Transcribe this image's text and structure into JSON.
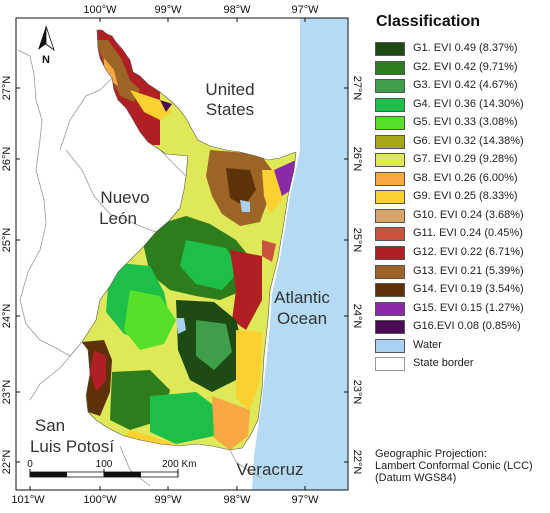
{
  "map": {
    "longitude_labels": [
      "100°W",
      "99°W",
      "98°W",
      "97°W"
    ],
    "bottom_longitude_labels": [
      "101°W",
      "100°W",
      "99°W",
      "98°W",
      "97°W"
    ],
    "latitude_labels": [
      "27°N",
      "26°N",
      "25°N",
      "24°N",
      "23°N",
      "22°N"
    ],
    "region_labels": {
      "united_states_line1": "United",
      "united_states_line2": "States",
      "nuevo_leon_line1": "Nuevo",
      "nuevo_leon_line2": "León",
      "atlantic_line1": "Atlantic",
      "atlantic_line2": "Ocean",
      "san_luis_line1": "San",
      "san_luis_line2": "Luis Potosí",
      "veracruz": "Veracruz"
    },
    "north_arrow_label": "N",
    "scale_bar": {
      "labels": [
        "0",
        "100",
        "200 Km"
      ]
    },
    "colors": {
      "ocean": "#b5dbf4",
      "land_background": "#ffffff",
      "border": "#9a9a9a"
    }
  },
  "legend": {
    "title": "Classification",
    "items": [
      {
        "label": "G1. EVI 0.49 (8.37%)",
        "color": "#1e4a14"
      },
      {
        "label": "G2. EVI 0.42 (9.71%)",
        "color": "#2d7d1d"
      },
      {
        "label": "G3. EVI 0.42 (4.67%)",
        "color": "#3f9e4a"
      },
      {
        "label": "G4. EVI 0.36 (14.30%)",
        "color": "#1dbf48"
      },
      {
        "label": "G5. EVI 0.33 (3.08%)",
        "color": "#57e02a"
      },
      {
        "label": "G6. EVI 0.32 (14.38%)",
        "color": "#a6a616"
      },
      {
        "label": "G7. EVI 0.29 (9.28%)",
        "color": "#dfe856"
      },
      {
        "label": "G8. EVI 0.26 (6.00%)",
        "color": "#f8a743"
      },
      {
        "label": "G9. EVI 0.25 (8.33%)",
        "color": "#fcd02f"
      },
      {
        "label": "G10. EVI 0.24 (3.68%)",
        "color": "#d9a46c"
      },
      {
        "label": "G11. EVI 0.24 (0.45%)",
        "color": "#c9533f"
      },
      {
        "label": "G12. EVI 0.22 (6.71%)",
        "color": "#b01f23"
      },
      {
        "label": "G13. EVI 0.21 (5.39%)",
        "color": "#9c6526"
      },
      {
        "label": "G14. EVI 0.19 (3.54%)",
        "color": "#5e3208"
      },
      {
        "label": "G15. EVI 0.15 (1.27%)",
        "color": "#8a2aa6"
      },
      {
        "label": "G16.EVI 0.08 (0.85%)",
        "color": "#4a0a55"
      },
      {
        "label": "Water",
        "color": "#a9d1f4"
      },
      {
        "label": "State border",
        "color": "#ffffff"
      }
    ],
    "projection": {
      "line1": "Geographic Projection:",
      "line2": "Lambert Conformal Conic (LCC)",
      "line3": "(Datum WGS84)"
    }
  }
}
